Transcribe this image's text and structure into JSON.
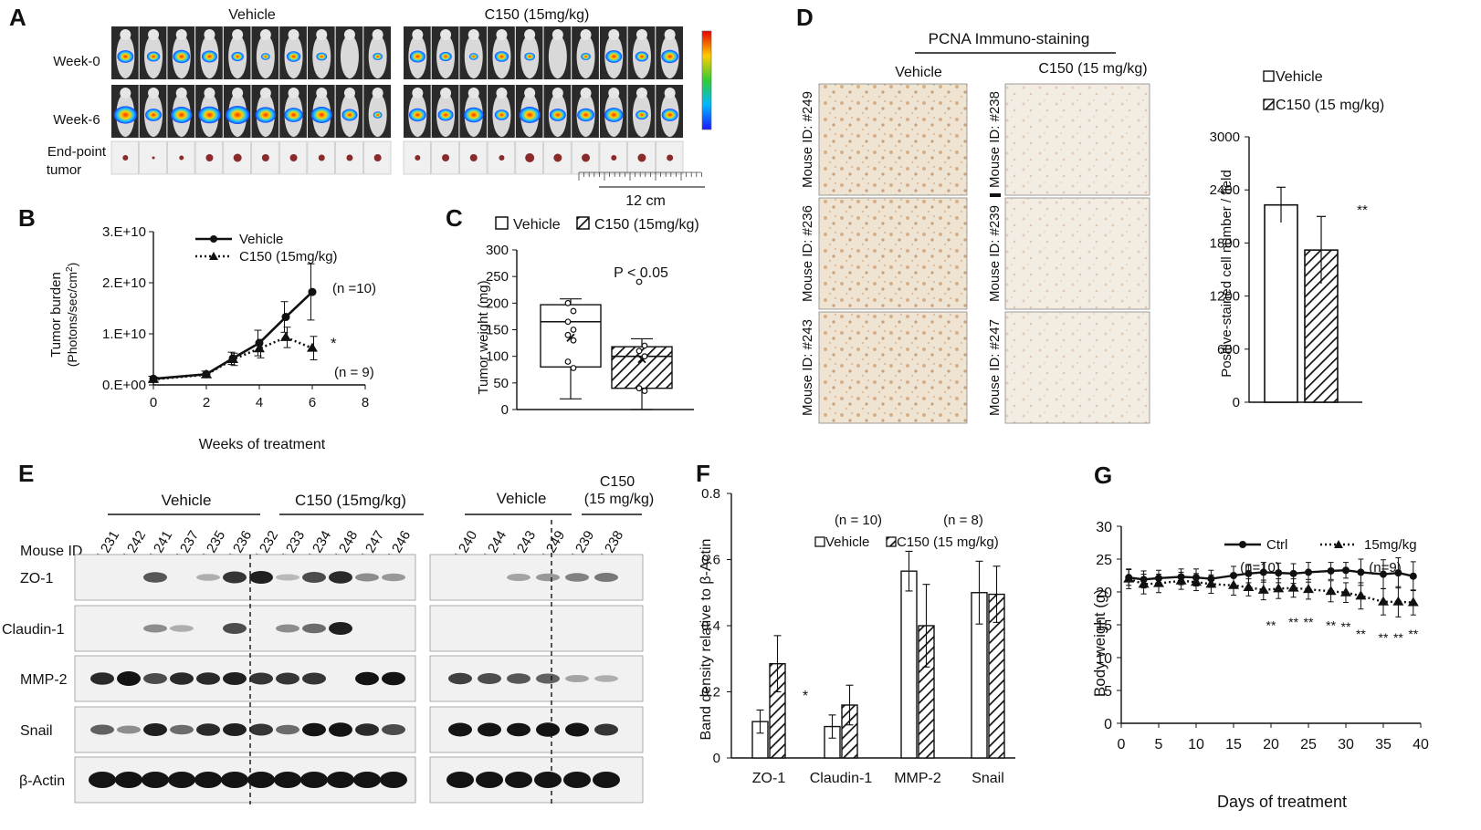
{
  "panels": {
    "A": "A",
    "B": "B",
    "C": "C",
    "D": "D",
    "E": "E",
    "F": "F",
    "G": "G"
  },
  "panel_a": {
    "groups": [
      "Vehicle",
      "C150 (15mg/kg)"
    ],
    "rows": [
      "Week-0",
      "Week-6",
      "End-point",
      "tumor"
    ],
    "scale": "12 cm"
  },
  "panel_d": {
    "title": "PCNA Immuno-staining",
    "groups": [
      "Vehicle",
      "C150 (15 mg/kg)"
    ],
    "left_ids": [
      "Mouse ID: #249",
      "Mouse ID: #236",
      "Mouse ID: #243"
    ],
    "right_ids": [
      "Mouse ID: #238",
      "Mouse ID: #239",
      "Mouse ID: #247"
    ]
  },
  "panel_e": {
    "headers": [
      "Vehicle",
      "C150 (15mg/kg)",
      "Vehicle",
      "C150",
      "(15 mg/kg)"
    ],
    "mouse_id_label": "Mouse ID",
    "lanes_left": [
      "# 231",
      "# 242",
      "# 241",
      "# 237",
      "# 235",
      "# 236",
      "# 232",
      "# 233",
      "# 234",
      "# 248",
      "# 247",
      "# 246"
    ],
    "lanes_right": [
      "# 240",
      "# 244",
      "# 243",
      "# 249",
      "# 239",
      "# 238"
    ],
    "proteins": [
      "ZO-1",
      "Claudin-1",
      "MMP-2",
      "Snail",
      "β-Actin"
    ],
    "colors": {
      "band": "#141414",
      "blot": "#f1f1f1"
    }
  },
  "chart_data": [
    {
      "panel": "B",
      "type": "line",
      "xlabel": "Weeks of treatment",
      "ylabel_line1": "Tumor burden",
      "ylabel_line2": "(Photons/sec/cm",
      "ylabel_sup": "2",
      "ylabel_end": ")",
      "xlim": [
        0,
        8
      ],
      "ylim": [
        0,
        30000000000.0
      ],
      "xticks": [
        0,
        2,
        4,
        6,
        8
      ],
      "xtick_labels": [
        "0",
        "2",
        "4",
        "6",
        "8"
      ],
      "yticks": [
        0,
        10000000000.0,
        20000000000.0,
        30000000000.0
      ],
      "ytick_labels": [
        "0.E+00",
        "1.E+10",
        "2.E+10",
        "3.E+10"
      ],
      "series": [
        {
          "name": "Vehicle",
          "x": [
            0,
            2,
            3,
            4,
            5,
            6
          ],
          "y": [
            1200000000.0,
            2100000000.0,
            5200000000.0,
            8200000000.0,
            13300000000.0,
            18200000000.0
          ],
          "err": [
            500000000.0,
            600000000.0,
            1200000000.0,
            2500000000.0,
            3000000000.0,
            5500000000.0
          ],
          "style": "solid",
          "marker": "circle"
        },
        {
          "name": "C150 (15mg/kg)",
          "x": [
            0,
            2,
            3,
            4,
            5,
            6
          ],
          "y": [
            1100000000.0,
            2000000000.0,
            5000000000.0,
            7100000000.0,
            9300000000.0,
            7200000000.0
          ],
          "err": [
            400000000.0,
            500000000.0,
            1200000000.0,
            1800000000.0,
            2000000000.0,
            2300000000.0
          ],
          "style": "dotted",
          "marker": "triangle"
        }
      ],
      "annotations": [
        "(n =10)",
        "*",
        "(n = 9)"
      ]
    },
    {
      "panel": "C",
      "type": "box",
      "ylabel": "Tumor weight (mg)",
      "ylim": [
        0,
        300
      ],
      "yticks": [
        0,
        50,
        100,
        150,
        200,
        250,
        300
      ],
      "legend": [
        "Vehicle",
        "C150 (15mg/kg)"
      ],
      "annotation": "P < 0.05",
      "boxes": [
        {
          "name": "Vehicle",
          "whisker_low": 20,
          "q1": 80,
          "median": 165,
          "q3": 197,
          "whisker_high": 208,
          "mean": 135,
          "points": [
            200,
            185,
            165,
            150,
            140,
            130,
            90,
            78
          ]
        },
        {
          "name": "C150 (15mg/kg)",
          "whisker_low": 0,
          "q1": 40,
          "median": 100,
          "q3": 118,
          "whisker_high": 133,
          "mean": 95,
          "points": [
            240,
            120,
            110,
            100,
            40,
            35
          ]
        }
      ]
    },
    {
      "panel": "D",
      "type": "bar",
      "ylabel": "Positive-stained  cell number / field",
      "ylim": [
        0,
        3000
      ],
      "yticks": [
        0,
        600,
        1200,
        1800,
        2400,
        3000
      ],
      "legend": [
        "Vehicle",
        "C150 (15 mg/kg)"
      ],
      "categories": [
        "Vehicle",
        "C150 (15 mg/kg)"
      ],
      "values": [
        2230,
        1720
      ],
      "errors": [
        200,
        380
      ],
      "annotation": "**"
    },
    {
      "panel": "F",
      "type": "bar",
      "ylabel": "Band density relative to β-Actin",
      "ylim": [
        0,
        0.8
      ],
      "yticks": [
        0,
        0.2,
        0.4,
        0.6,
        0.8
      ],
      "ytick_labels": [
        "0",
        "0.2",
        "0.4",
        "0.6",
        "0.8"
      ],
      "categories": [
        "ZO-1",
        "Claudin-1",
        "MMP-2",
        "Snail"
      ],
      "legend": [
        "Vehicle",
        "C150 (15 mg/kg)"
      ],
      "notes": [
        "(n = 10)",
        "(n = 8)"
      ],
      "series": [
        {
          "name": "Vehicle",
          "values": [
            0.11,
            0.095,
            0.565,
            0.5
          ],
          "errors": [
            0.035,
            0.035,
            0.06,
            0.095
          ]
        },
        {
          "name": "C150 (15 mg/kg)",
          "values": [
            0.285,
            0.16,
            0.4,
            0.495
          ],
          "errors": [
            0.085,
            0.06,
            0.125,
            0.085
          ]
        }
      ],
      "annotation": "*"
    },
    {
      "panel": "G",
      "type": "line",
      "xlabel": "Days of treatment",
      "ylabel": "Body weight (g)",
      "xlim": [
        0,
        40
      ],
      "ylim": [
        0,
        30
      ],
      "xticks": [
        0,
        5,
        10,
        15,
        20,
        25,
        30,
        35,
        40
      ],
      "yticks": [
        0,
        5,
        10,
        15,
        20,
        25,
        30
      ],
      "series": [
        {
          "name": "Ctrl",
          "x": [
            1,
            3,
            5,
            8,
            10,
            12,
            15,
            17,
            19,
            21,
            23,
            25,
            28,
            30,
            32,
            35,
            37,
            39
          ],
          "y": [
            22.2,
            21.9,
            22.1,
            22.3,
            22.2,
            22,
            22.5,
            22.8,
            23,
            22.9,
            22.8,
            23,
            23.2,
            23.3,
            23,
            22.7,
            22.9,
            22.4
          ],
          "err": [
            1.2,
            1.3,
            1.2,
            1.2,
            1.3,
            1.3,
            1.4,
            1.4,
            1.5,
            1.5,
            1.5,
            1.5,
            1.3,
            1.2,
            2,
            2.2,
            2.3,
            2.2
          ],
          "style": "solid",
          "marker": "circle"
        },
        {
          "name": "15mg/kg",
          "x": [
            1,
            3,
            5,
            8,
            10,
            12,
            15,
            17,
            19,
            21,
            23,
            25,
            28,
            30,
            32,
            35,
            37,
            39
          ],
          "y": [
            22,
            21.2,
            21.3,
            21.7,
            21.5,
            21.2,
            21,
            20.7,
            20.3,
            20.5,
            20.6,
            20.4,
            20.1,
            19.9,
            19.4,
            18.5,
            18.5,
            18.4
          ],
          "err": [
            1.5,
            1.5,
            1.4,
            1.3,
            1.3,
            1.4,
            1.5,
            1.3,
            1.5,
            1.5,
            1.4,
            1.5,
            1.6,
            1.5,
            2,
            2,
            2.3,
            1.9
          ],
          "style": "dotted",
          "marker": "triangle"
        }
      ],
      "legend_notes": [
        "(n=10)",
        "(n=9)"
      ],
      "significance": "**"
    }
  ]
}
